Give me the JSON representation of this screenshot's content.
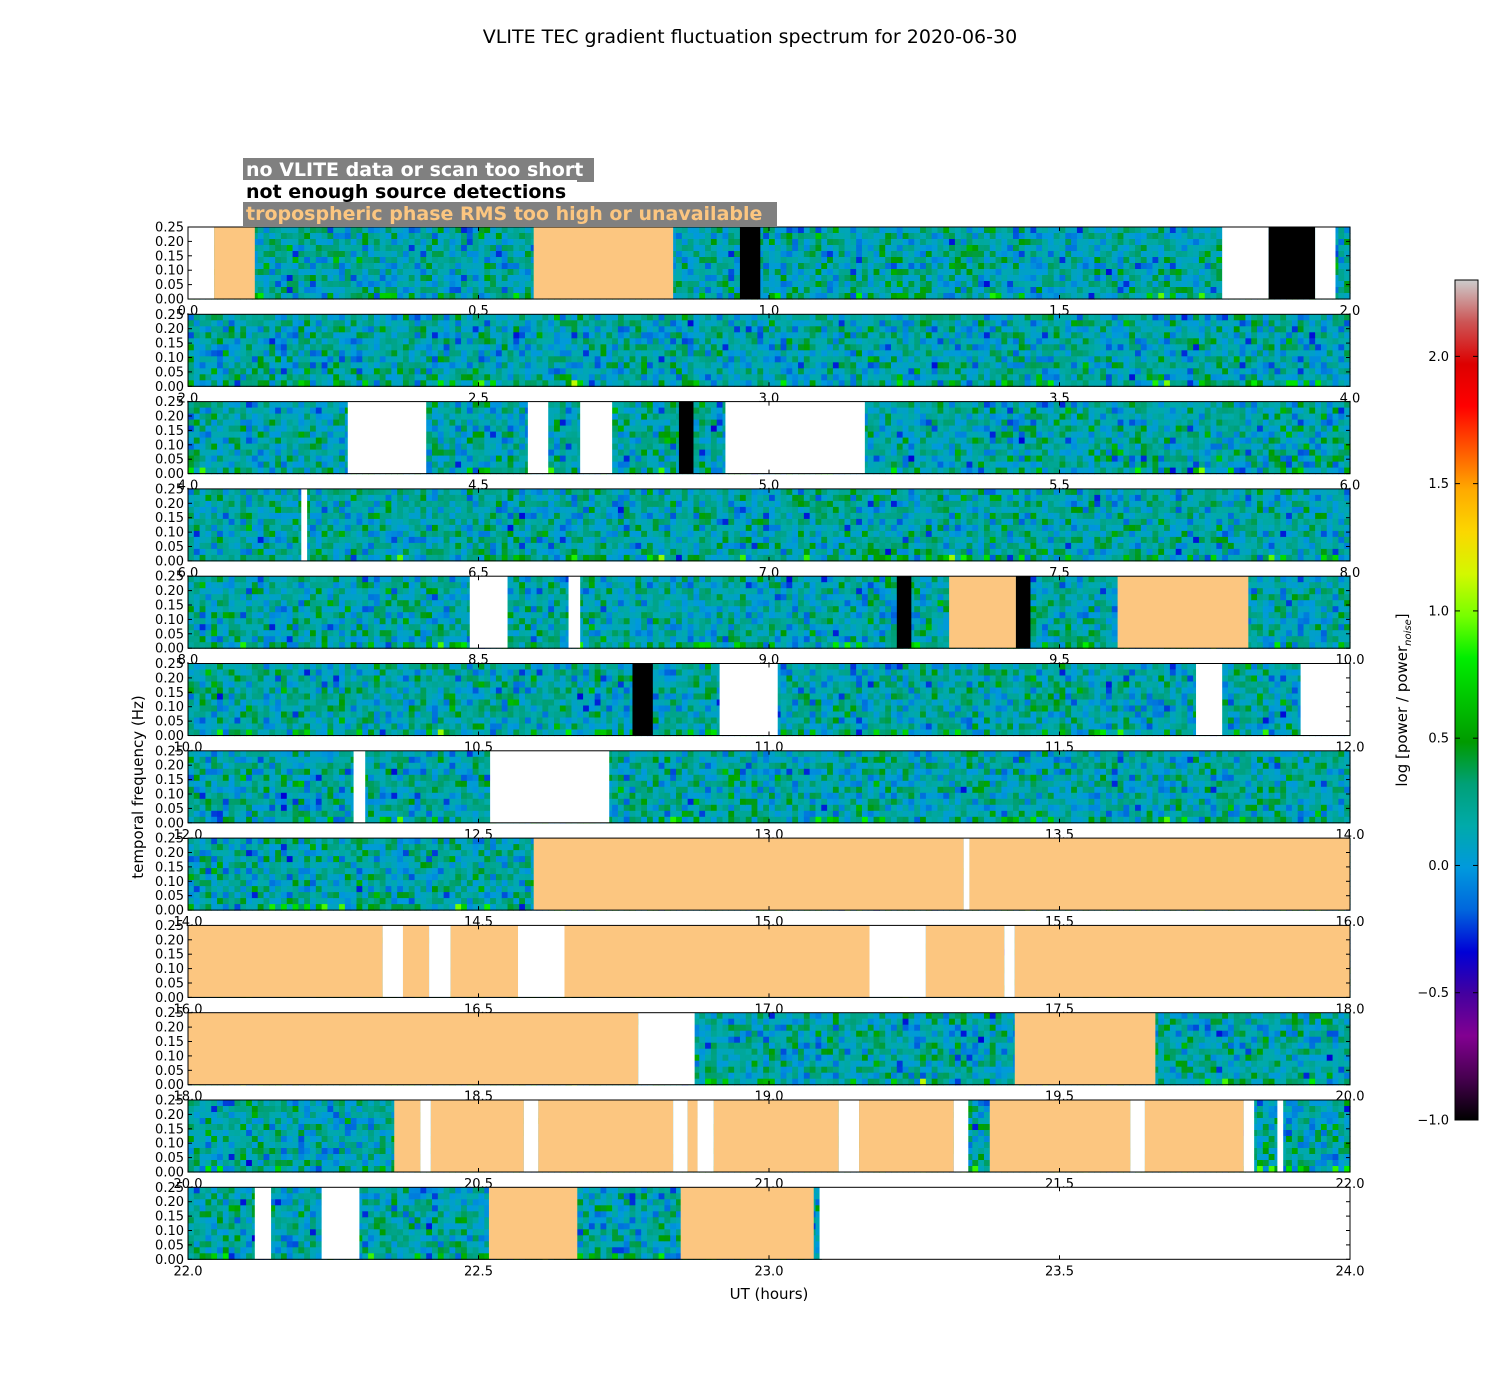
{
  "chart_data": {
    "type": "heatmap",
    "title": "VLITE TEC gradient fluctuation spectrum for 2020-06-30",
    "xlabel": "UT (hours)",
    "ylabel": "temporal frequency (Hz)",
    "colorbar_label": "log [power / power",
    "colorbar_label_sub": "noise",
    "colorbar_label_end": "]",
    "colormap": "nipy_spectral",
    "color_range": [
      -1.0,
      2.3
    ],
    "colorbar_ticks": [
      "2.0",
      "1.5",
      "1.0",
      "0.5",
      "0.0",
      "−0.5",
      "−1.0"
    ],
    "colorbar_tick_values": [
      2.0,
      1.5,
      1.0,
      0.5,
      0.0,
      -0.5,
      -1.0
    ],
    "ylim": [
      0,
      0.25
    ],
    "y_ticks": [
      "0.25",
      "0.20",
      "0.15",
      "0.10",
      "0.05",
      "0.00"
    ],
    "y_tick_values": [
      0.25,
      0.2,
      0.15,
      0.1,
      0.05,
      0.0
    ],
    "legend": [
      {
        "label": "no VLITE data or scan too short",
        "color": "#ffffff",
        "flag": "white"
      },
      {
        "label": "not enough source detections",
        "color": "#000000",
        "flag": "black"
      },
      {
        "label": "tropospheric phase RMS too high or unavailable",
        "color": "#fcc680",
        "flag": "orange"
      }
    ],
    "flag_colors": {
      "white": "#ffffff",
      "black": "#000000",
      "orange": "#fcc680"
    },
    "panels": [
      {
        "xlim": [
          0.0,
          2.0
        ],
        "x_ticks": [
          "0.0",
          "0.5",
          "1.0",
          "1.5",
          "2.0"
        ],
        "flags": [
          {
            "start": 0.0,
            "end": 0.045,
            "type": "white"
          },
          {
            "start": 0.045,
            "end": 0.115,
            "type": "orange"
          },
          {
            "start": 0.595,
            "end": 0.835,
            "type": "orange"
          },
          {
            "start": 0.95,
            "end": 0.985,
            "type": "black"
          },
          {
            "start": 1.78,
            "end": 1.86,
            "type": "white"
          },
          {
            "start": 1.86,
            "end": 1.94,
            "type": "black"
          },
          {
            "start": 1.94,
            "end": 1.975,
            "type": "white"
          }
        ]
      },
      {
        "xlim": [
          2.0,
          4.0
        ],
        "x_ticks": [
          "2.0",
          "2.5",
          "3.0",
          "3.5",
          "4.0"
        ],
        "flags": []
      },
      {
        "xlim": [
          4.0,
          6.0
        ],
        "x_ticks": [
          "4.0",
          "4.5",
          "5.0",
          "5.5",
          "6.0"
        ],
        "flags": [
          {
            "start": 4.275,
            "end": 4.41,
            "type": "white"
          },
          {
            "start": 4.585,
            "end": 4.62,
            "type": "white"
          },
          {
            "start": 4.675,
            "end": 4.73,
            "type": "white"
          },
          {
            "start": 4.845,
            "end": 4.87,
            "type": "black"
          },
          {
            "start": 4.925,
            "end": 5.165,
            "type": "white"
          }
        ]
      },
      {
        "xlim": [
          6.0,
          8.0
        ],
        "x_ticks": [
          "6.0",
          "6.5",
          "7.0",
          "7.5",
          "8.0"
        ],
        "flags": [
          {
            "start": 6.195,
            "end": 6.205,
            "type": "white"
          }
        ]
      },
      {
        "xlim": [
          8.0,
          10.0
        ],
        "x_ticks": [
          "8.0",
          "8.5",
          "9.0",
          "9.5",
          "10.0"
        ],
        "flags": [
          {
            "start": 8.485,
            "end": 8.55,
            "type": "white"
          },
          {
            "start": 8.655,
            "end": 8.675,
            "type": "white"
          },
          {
            "start": 9.22,
            "end": 9.245,
            "type": "black"
          },
          {
            "start": 9.31,
            "end": 9.425,
            "type": "orange"
          },
          {
            "start": 9.425,
            "end": 9.45,
            "type": "black"
          },
          {
            "start": 9.6,
            "end": 9.825,
            "type": "orange"
          }
        ]
      },
      {
        "xlim": [
          10.0,
          12.0
        ],
        "x_ticks": [
          "10.0",
          "10.5",
          "11.0",
          "11.5",
          "12.0"
        ],
        "flags": [
          {
            "start": 10.765,
            "end": 10.8,
            "type": "black"
          },
          {
            "start": 10.915,
            "end": 11.015,
            "type": "white"
          },
          {
            "start": 11.735,
            "end": 11.78,
            "type": "white"
          },
          {
            "start": 11.915,
            "end": 12.0,
            "type": "white"
          }
        ]
      },
      {
        "xlim": [
          12.0,
          14.0
        ],
        "x_ticks": [
          "12.0",
          "12.5",
          "13.0",
          "13.5",
          "14.0"
        ],
        "flags": [
          {
            "start": 12.285,
            "end": 12.305,
            "type": "white"
          },
          {
            "start": 12.52,
            "end": 12.725,
            "type": "white"
          }
        ]
      },
      {
        "xlim": [
          14.0,
          16.0
        ],
        "x_ticks": [
          "14.0",
          "14.5",
          "15.0",
          "15.5",
          "16.0"
        ],
        "flags": [
          {
            "start": 14.595,
            "end": 15.335,
            "type": "orange"
          },
          {
            "start": 15.335,
            "end": 15.345,
            "type": "white"
          },
          {
            "start": 15.345,
            "end": 16.0,
            "type": "orange"
          }
        ]
      },
      {
        "xlim": [
          16.0,
          18.0
        ],
        "x_ticks": [
          "16.0",
          "16.5",
          "17.0",
          "17.5",
          "18.0"
        ],
        "flags": [
          {
            "start": 16.0,
            "end": 16.335,
            "type": "orange"
          },
          {
            "start": 16.335,
            "end": 16.37,
            "type": "white"
          },
          {
            "start": 16.37,
            "end": 16.415,
            "type": "orange"
          },
          {
            "start": 16.415,
            "end": 16.452,
            "type": "white"
          },
          {
            "start": 16.452,
            "end": 16.568,
            "type": "orange"
          },
          {
            "start": 16.568,
            "end": 16.648,
            "type": "white"
          },
          {
            "start": 16.648,
            "end": 17.173,
            "type": "orange"
          },
          {
            "start": 17.173,
            "end": 17.27,
            "type": "white"
          },
          {
            "start": 17.27,
            "end": 17.405,
            "type": "orange"
          },
          {
            "start": 17.405,
            "end": 17.423,
            "type": "white"
          },
          {
            "start": 17.423,
            "end": 18.0,
            "type": "orange"
          }
        ]
      },
      {
        "xlim": [
          18.0,
          20.0
        ],
        "x_ticks": [
          "18.0",
          "18.5",
          "19.0",
          "19.5",
          "20.0"
        ],
        "flags": [
          {
            "start": 18.0,
            "end": 18.775,
            "type": "orange"
          },
          {
            "start": 18.775,
            "end": 18.872,
            "type": "white"
          },
          {
            "start": 19.423,
            "end": 19.665,
            "type": "orange"
          }
        ]
      },
      {
        "xlim": [
          20.0,
          22.0
        ],
        "x_ticks": [
          "20.0",
          "20.5",
          "21.0",
          "21.5",
          "22.0"
        ],
        "flags": [
          {
            "start": 20.355,
            "end": 20.4,
            "type": "orange"
          },
          {
            "start": 20.4,
            "end": 20.418,
            "type": "white"
          },
          {
            "start": 20.418,
            "end": 20.578,
            "type": "orange"
          },
          {
            "start": 20.578,
            "end": 20.603,
            "type": "white"
          },
          {
            "start": 20.603,
            "end": 20.835,
            "type": "orange"
          },
          {
            "start": 20.835,
            "end": 20.86,
            "type": "white"
          },
          {
            "start": 20.86,
            "end": 20.877,
            "type": "orange"
          },
          {
            "start": 20.877,
            "end": 20.905,
            "type": "white"
          },
          {
            "start": 20.905,
            "end": 21.12,
            "type": "orange"
          },
          {
            "start": 21.12,
            "end": 21.155,
            "type": "white"
          },
          {
            "start": 21.155,
            "end": 21.318,
            "type": "orange"
          },
          {
            "start": 21.318,
            "end": 21.343,
            "type": "white"
          },
          {
            "start": 21.38,
            "end": 21.622,
            "type": "orange"
          },
          {
            "start": 21.622,
            "end": 21.647,
            "type": "white"
          },
          {
            "start": 21.647,
            "end": 21.817,
            "type": "orange"
          },
          {
            "start": 21.817,
            "end": 21.835,
            "type": "white"
          },
          {
            "start": 21.875,
            "end": 21.885,
            "type": "white"
          }
        ]
      },
      {
        "xlim": [
          22.0,
          24.0
        ],
        "x_ticks": [
          "22.0",
          "22.5",
          "23.0",
          "23.5",
          "24.0"
        ],
        "flags": [
          {
            "start": 22.115,
            "end": 22.143,
            "type": "white"
          },
          {
            "start": 22.23,
            "end": 22.295,
            "type": "white"
          },
          {
            "start": 22.518,
            "end": 22.67,
            "type": "orange"
          },
          {
            "start": 22.848,
            "end": 23.077,
            "type": "orange"
          },
          {
            "start": 23.087,
            "end": 24.0,
            "type": "white"
          }
        ],
        "spectrum_end": 23.087
      }
    ]
  }
}
